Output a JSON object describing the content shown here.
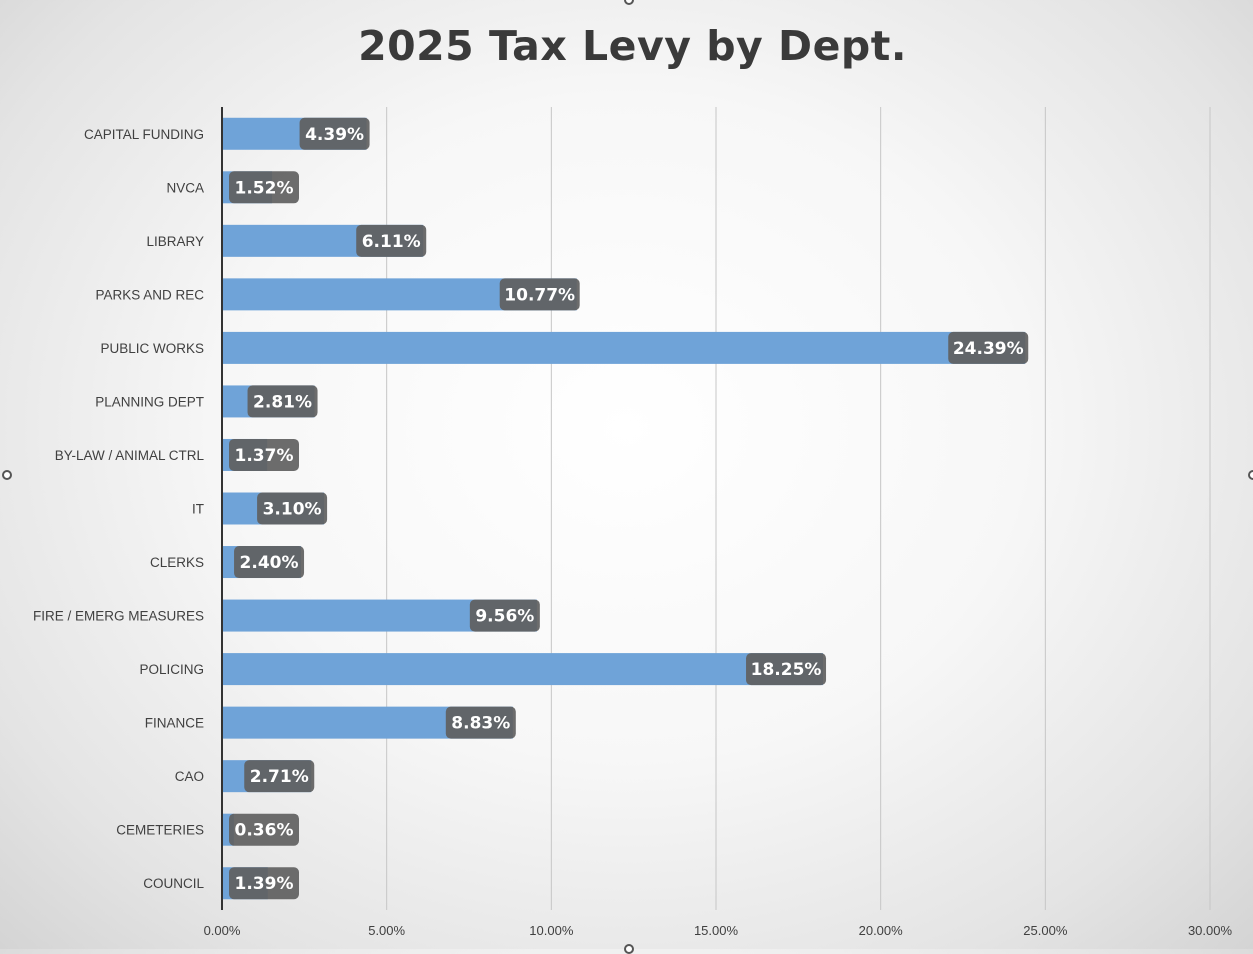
{
  "chart_data": {
    "type": "bar",
    "orientation": "horizontal",
    "title": "2025 Tax Levy by Dept.",
    "categories": [
      "CAPITAL FUNDING",
      "NVCA",
      "LIBRARY",
      "PARKS AND REC",
      "PUBLIC WORKS",
      "PLANNING DEPT",
      "BY-LAW / ANIMAL CTRL",
      "IT",
      "CLERKS",
      "FIRE / EMERG MEASURES",
      "POLICING",
      "FINANCE",
      "CAO",
      "CEMETERIES",
      "COUNCIL"
    ],
    "values": [
      4.39,
      1.52,
      6.11,
      10.77,
      24.39,
      2.81,
      1.37,
      3.1,
      2.4,
      9.56,
      18.25,
      8.83,
      2.71,
      0.36,
      1.39
    ],
    "data_labels": [
      "4.39%",
      "1.52%",
      "6.11%",
      "10.77%",
      "24.39%",
      "2.81%",
      "1.37%",
      "3.10%",
      "2.40%",
      "9.56%",
      "18.25%",
      "8.83%",
      "2.71%",
      "0.36%",
      "1.39%"
    ],
    "xlim": [
      0,
      30
    ],
    "x_ticks": [
      "0.00%",
      "5.00%",
      "10.00%",
      "15.00%",
      "20.00%",
      "25.00%",
      "30.00%"
    ],
    "grid": "vertical",
    "legend": "none",
    "bar_color": "#6fa3d8",
    "label_box_color": "#5f5f5f",
    "label_text_color": "#ffffff"
  }
}
